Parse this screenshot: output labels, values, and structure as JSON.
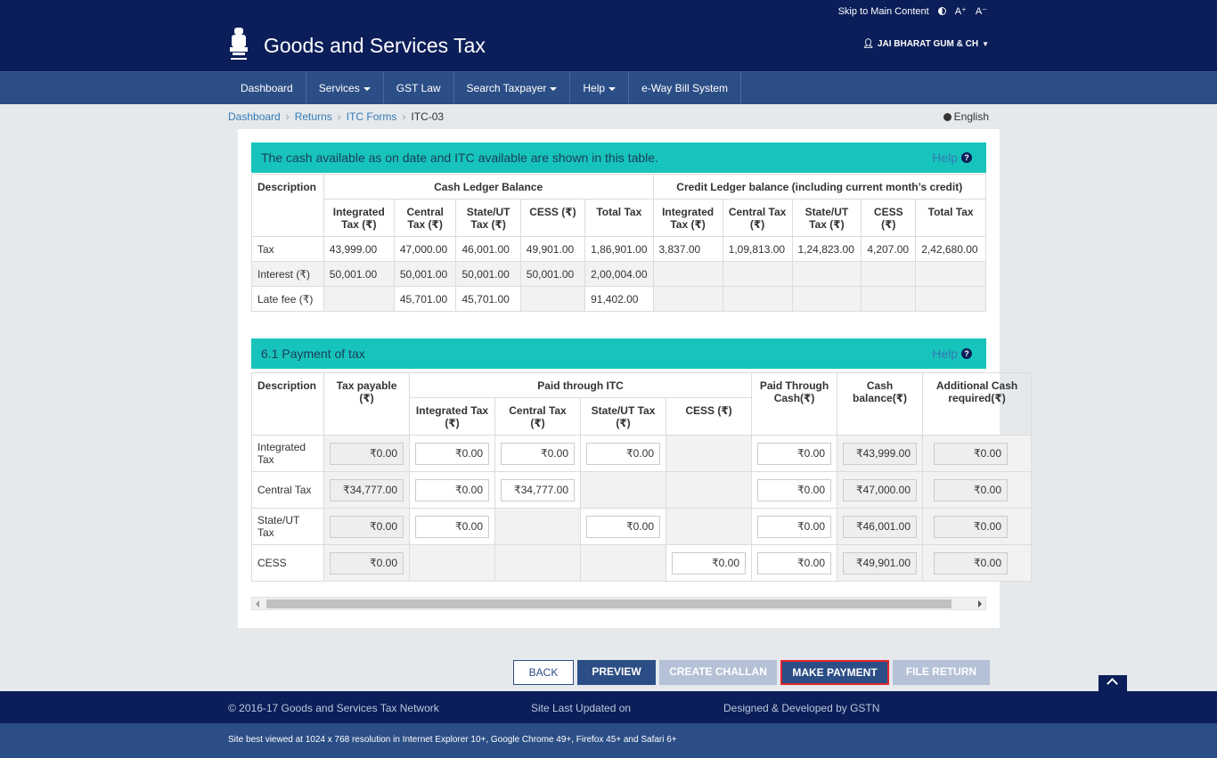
{
  "topbar": {
    "skip": "Skip to Main Content",
    "contrast_icon": "contrast-icon",
    "font_increase": "A⁺",
    "font_decrease": "A⁻"
  },
  "header": {
    "title": "Goods and Services Tax",
    "emblem_icon": "emblem-icon",
    "user_name": "JAI BHARAT GUM & CH"
  },
  "nav": [
    "Dashboard",
    "Services",
    "GST Law",
    "Search Taxpayer",
    "Help",
    "e-Way Bill System"
  ],
  "breadcrumb": [
    "Dashboard",
    "Returns",
    "ITC Forms",
    "ITC-03"
  ],
  "language": "English",
  "cash_panel": {
    "title": "The cash available as on date and ITC available are shown in this table.",
    "help": "Help",
    "description": "Description",
    "cash_group": "Cash Ledger Balance",
    "credit_group": "Credit Ledger balance (including current month’s credit)",
    "columns": [
      "Integrated Tax (₹)",
      "Central Tax (₹)",
      "State/UT Tax (₹)",
      "CESS (₹)",
      "Total Tax",
      "Integrated Tax (₹)",
      "Central Tax (₹)",
      "State/UT Tax (₹)",
      "CESS (₹)",
      "Total Tax"
    ],
    "rows": [
      {
        "label": "Tax",
        "cells": [
          "43,999.00",
          "47,000.00",
          "46,001.00",
          "49,901.00",
          "1,86,901.00",
          "3,837.00",
          "1,09,813.00",
          "1,24,823.00",
          "4,207.00",
          "2,42,680.00"
        ]
      },
      {
        "label": "Interest (₹)",
        "cells": [
          "50,001.00",
          "50,001.00",
          "50,001.00",
          "50,001.00",
          "2,00,004.00",
          "",
          "",
          "",
          "",
          ""
        ]
      },
      {
        "label": "Late fee (₹)",
        "cells": [
          "",
          "45,701.00",
          "45,701.00",
          "",
          "91,402.00",
          "",
          "",
          "",
          "",
          ""
        ]
      }
    ]
  },
  "payment_panel": {
    "title": "6.1 Payment of tax",
    "help": "Help",
    "headers": {
      "description": "Description",
      "tax_payable": "Tax payable (₹)",
      "paid_itc": "Paid through ITC",
      "itc_integrated": "Integrated Tax (₹)",
      "itc_central": "Central Tax (₹)",
      "itc_state": "State/UT Tax (₹)",
      "itc_cess": "CESS (₹)",
      "paid_cash": "Paid Through Cash(₹)",
      "cash_balance": "Cash balance(₹)",
      "additional_cash": "Additional Cash required(₹)"
    },
    "rows": [
      {
        "label": "Integrated Tax",
        "tax_payable": "₹0.00",
        "itc": [
          "₹0.00",
          "₹0.00",
          "₹0.00",
          null
        ],
        "paid_cash": "₹0.00",
        "cash_balance": "₹43,999.00",
        "additional": "₹0.00"
      },
      {
        "label": "Central Tax",
        "tax_payable": "₹34,777.00",
        "itc": [
          "₹0.00",
          "₹34,777.00",
          null,
          null
        ],
        "paid_cash": "₹0.00",
        "cash_balance": "₹47,000.00",
        "additional": "₹0.00"
      },
      {
        "label": "State/UT Tax",
        "tax_payable": "₹0.00",
        "itc": [
          "₹0.00",
          null,
          "₹0.00",
          null
        ],
        "paid_cash": "₹0.00",
        "cash_balance": "₹46,001.00",
        "additional": "₹0.00"
      },
      {
        "label": "CESS",
        "tax_payable": "₹0.00",
        "itc": [
          null,
          null,
          null,
          "₹0.00"
        ],
        "paid_cash": "₹0.00",
        "cash_balance": "₹49,901.00",
        "additional": "₹0.00"
      }
    ]
  },
  "buttons": {
    "back": "BACK",
    "preview": "PREVIEW",
    "create_challan": "CREATE CHALLAN",
    "make_payment": "MAKE PAYMENT",
    "file_return": "FILE RETURN"
  },
  "footer": {
    "copyright": "© 2016-17 Goods and Services Tax Network",
    "updated": "Site Last Updated on",
    "designed": "Designed & Developed by GSTN",
    "best_viewed": "Site best viewed at 1024 x 768 resolution in Internet Explorer 10+, Google Chrome 49+, Firefox 45+ and Safari 6+"
  },
  "colors": {
    "navy": "#0b1e59",
    "nav_blue": "#2c4e86",
    "teal": "#17c4bb",
    "highlight_red": "#e2262b"
  }
}
